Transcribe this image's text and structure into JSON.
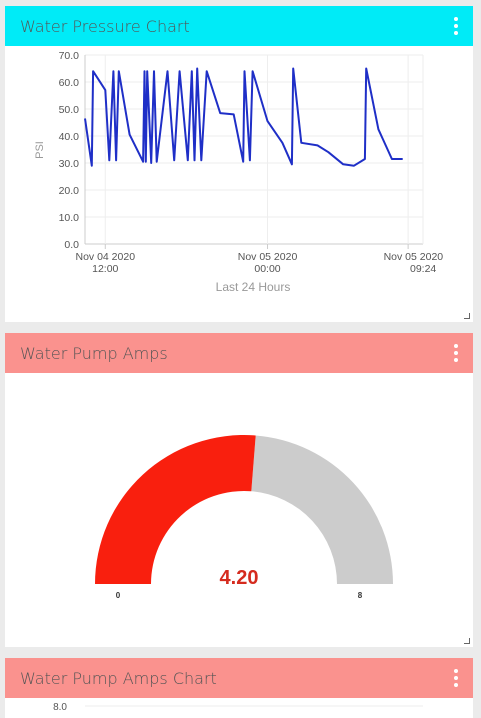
{
  "widgets": {
    "pressure_chart": {
      "title": "Water Pressure Chart"
    },
    "pump_amps": {
      "title": "Water Pump Amps",
      "value": 4.2,
      "value_label": "4.20",
      "min_label": "0",
      "max_label": "8",
      "min": 0,
      "max": 8
    },
    "pump_amps_chart": {
      "title": "Water Pump Amps Chart",
      "first_tick": "8.0"
    }
  },
  "colors": {
    "pressure_header": "#00ebf7",
    "amps_header": "#fa928e",
    "line": "#1f2fc7",
    "gauge_fill": "#f91f0e",
    "gauge_track": "#cccccc",
    "gauge_value_text": "#d52b1e"
  },
  "icons": [
    "menu-dots-icon",
    "resize-corner-icon"
  ],
  "chart_data": {
    "type": "line",
    "title": "",
    "xlabel": "Last 24 Hours",
    "ylabel": "PSI",
    "ylim": [
      0,
      70
    ],
    "yticks": [
      "0.0",
      "10.0",
      "20.0",
      "30.0",
      "40.0",
      "50.0",
      "60.0",
      "70.0"
    ],
    "xlim_hours": [
      0,
      25
    ],
    "xticks": [
      {
        "h": 1.5,
        "date": "Nov 04 2020",
        "time": "12:00"
      },
      {
        "h": 13.5,
        "date": "Nov 05 2020",
        "time": "00:00"
      },
      {
        "h": 23.9,
        "date": "Nov 05 2020",
        "time": "09:24"
      }
    ],
    "series": [
      {
        "values_note": "hours since 09:24 Nov 04 vs PSI",
        "points": [
          [
            0,
            46.5
          ],
          [
            0.5,
            29
          ],
          [
            0.6,
            64
          ],
          [
            1.5,
            57
          ],
          [
            1.8,
            31
          ],
          [
            2.1,
            64
          ],
          [
            2.3,
            31
          ],
          [
            2.5,
            64
          ],
          [
            3.3,
            40.5
          ],
          [
            4.3,
            30.5
          ],
          [
            4.4,
            64
          ],
          [
            4.5,
            30.5
          ],
          [
            4.6,
            64
          ],
          [
            4.9,
            30
          ],
          [
            5.1,
            64
          ],
          [
            5.3,
            30.5
          ],
          [
            6.1,
            64
          ],
          [
            6.6,
            31
          ],
          [
            7.0,
            64
          ],
          [
            7.6,
            31
          ],
          [
            7.9,
            64
          ],
          [
            8.1,
            31
          ],
          [
            8.3,
            65
          ],
          [
            8.6,
            31
          ],
          [
            9.0,
            64
          ],
          [
            10.0,
            48.5
          ],
          [
            11.0,
            48
          ],
          [
            11.7,
            30.5
          ],
          [
            11.8,
            64
          ],
          [
            12.2,
            31
          ],
          [
            12.4,
            64
          ],
          [
            13.5,
            45.5
          ],
          [
            14.6,
            37.5
          ],
          [
            15.3,
            29.5
          ],
          [
            15.4,
            65
          ],
          [
            16.0,
            37.5
          ],
          [
            17.2,
            36.5
          ],
          [
            18.0,
            34
          ],
          [
            19.1,
            29.5
          ],
          [
            19.9,
            29
          ],
          [
            20.7,
            31.5
          ],
          [
            20.8,
            65
          ],
          [
            21.7,
            42.5
          ],
          [
            22.7,
            31.5
          ],
          [
            23.5,
            31.5
          ]
        ]
      }
    ],
    "grid": true,
    "legend": "none"
  }
}
